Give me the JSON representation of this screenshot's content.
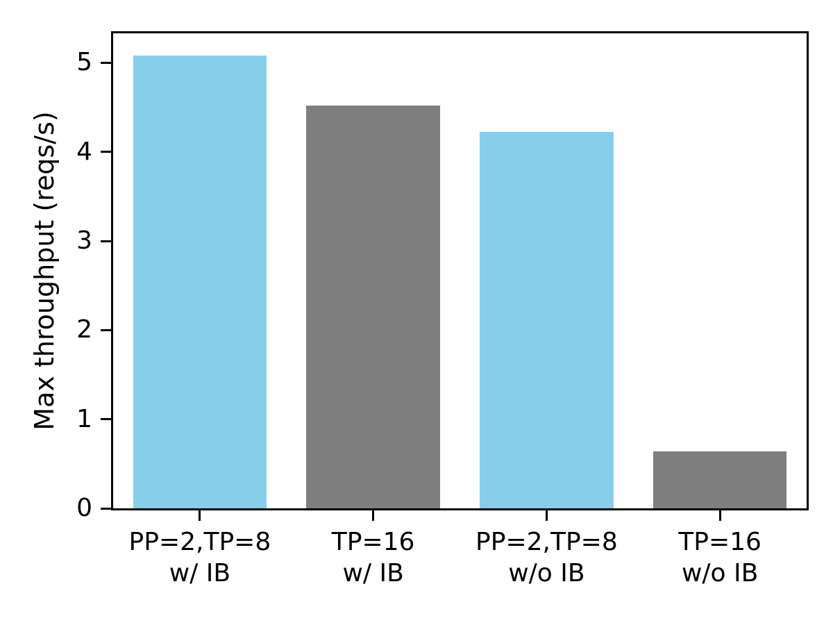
{
  "figure": {
    "background": "#FFFFFF",
    "axis_color": "#000000",
    "text_color": "#000000"
  },
  "chart_data": {
    "type": "bar",
    "title": "",
    "xlabel": "",
    "ylabel": "Max throughput (reqs/s)",
    "categories": [
      "PP=2,TP=8\nw/ IB",
      "TP=16\nw/ IB",
      "PP=2,TP=8\nw/o IB",
      "TP=16\nw/o IB"
    ],
    "values": [
      5.08,
      4.52,
      4.22,
      0.64
    ],
    "bar_colors": [
      "#87CEEB",
      "#7F7F7F",
      "#87CEEB",
      "#7F7F7F"
    ],
    "yticks": [
      0,
      1,
      2,
      3,
      4,
      5
    ],
    "ylim": [
      0,
      5.33
    ],
    "bar_width_fraction": 0.77,
    "grid": false,
    "legend": null
  }
}
